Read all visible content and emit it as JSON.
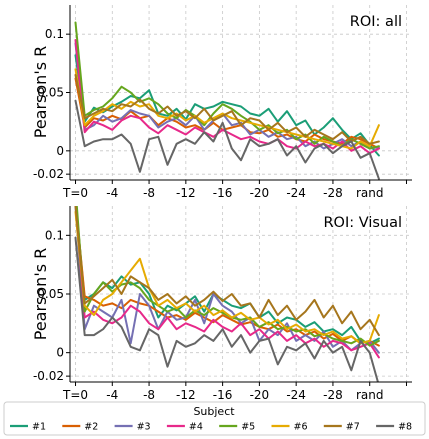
{
  "chart_data": [
    {
      "type": "line",
      "annotation": "ROI: all",
      "title": "",
      "xlabel": "",
      "ylabel": "Pearson's R",
      "ylim": [
        -0.025,
        0.125
      ],
      "xlim": [
        -0.6,
        36.6
      ],
      "x_ticks": [
        0,
        4,
        8,
        12,
        16,
        20,
        24,
        28,
        32,
        36
      ],
      "x_tick_labels": [
        "T=0",
        "-4",
        "-8",
        "-12",
        "-16",
        "-20",
        "-24",
        "-28",
        "rand",
        ""
      ],
      "y_ticks": [
        -0.02,
        0,
        0.05,
        0.1
      ],
      "y_tick_labels": [
        "-0.02",
        "0",
        "0.05",
        "0.1"
      ],
      "grid": true,
      "x": [
        0,
        1,
        2,
        3,
        4,
        5,
        6,
        7,
        8,
        9,
        10,
        11,
        12,
        13,
        14,
        15,
        16,
        17,
        18,
        19,
        20,
        21,
        22,
        23,
        24,
        25,
        26,
        27,
        28,
        29,
        30,
        31,
        32,
        33
      ],
      "series": [
        {
          "name": "#1",
          "color": "#1b9e77",
          "values": [
            0.082,
            0.025,
            0.037,
            0.033,
            0.038,
            0.042,
            0.047,
            0.045,
            0.052,
            0.032,
            0.03,
            0.036,
            0.027,
            0.04,
            0.036,
            0.038,
            0.042,
            0.04,
            0.038,
            0.032,
            0.03,
            0.036,
            0.025,
            0.034,
            0.022,
            0.026,
            0.014,
            0.02,
            0.028,
            0.018,
            0.01,
            0.015,
            0.005,
            -0.004
          ]
        },
        {
          "name": "#2",
          "color": "#d95f02",
          "values": [
            0.062,
            0.02,
            0.028,
            0.026,
            0.03,
            0.027,
            0.034,
            0.028,
            0.03,
            0.022,
            0.028,
            0.025,
            0.02,
            0.022,
            0.018,
            0.024,
            0.018,
            0.02,
            0.022,
            0.016,
            0.015,
            0.018,
            0.012,
            0.014,
            0.01,
            0.008,
            0.014,
            0.01,
            0.008,
            0.006,
            0.012,
            0.01,
            0.006,
            0.002
          ]
        },
        {
          "name": "#3",
          "color": "#7570b3",
          "values": [
            0.092,
            0.018,
            0.022,
            0.03,
            0.025,
            0.028,
            0.035,
            0.032,
            0.03,
            0.02,
            0.025,
            0.028,
            0.022,
            0.03,
            0.018,
            0.026,
            0.032,
            0.022,
            0.024,
            0.014,
            0.018,
            0.012,
            0.016,
            0.01,
            0.012,
            0.004,
            0.008,
            0.002,
            0.006,
            0.01,
            0.004,
            0.008,
            0.002,
            0.003
          ]
        },
        {
          "name": "#4",
          "color": "#e7298a",
          "values": [
            0.095,
            0.016,
            0.025,
            0.022,
            0.018,
            0.026,
            0.03,
            0.028,
            0.02,
            0.015,
            0.022,
            0.018,
            0.014,
            0.02,
            0.016,
            0.012,
            0.018,
            0.014,
            0.01,
            0.012,
            0.008,
            0.006,
            0.01,
            0.004,
            0.002,
            0.008,
            0.004,
            0.006,
            0.002,
            0.008,
            0.0,
            0.004,
            -0.002,
            0.002
          ]
        },
        {
          "name": "#5",
          "color": "#66a61e",
          "values": [
            0.11,
            0.03,
            0.035,
            0.038,
            0.045,
            0.055,
            0.05,
            0.042,
            0.045,
            0.04,
            0.032,
            0.028,
            0.035,
            0.03,
            0.022,
            0.032,
            0.04,
            0.036,
            0.03,
            0.025,
            0.018,
            0.022,
            0.015,
            0.018,
            0.01,
            0.014,
            0.006,
            0.012,
            0.008,
            0.004,
            0.01,
            0.006,
            0.002,
            0.004
          ]
        },
        {
          "name": "#6",
          "color": "#e6ab02",
          "values": [
            0.07,
            0.022,
            0.03,
            0.034,
            0.04,
            0.036,
            0.042,
            0.038,
            0.04,
            0.03,
            0.028,
            0.032,
            0.026,
            0.03,
            0.024,
            0.028,
            0.032,
            0.028,
            0.026,
            0.024,
            0.022,
            0.02,
            0.018,
            0.016,
            0.014,
            0.012,
            0.01,
            0.008,
            0.006,
            0.004,
            0.002,
            0.008,
            0.004,
            0.022
          ]
        },
        {
          "name": "#7",
          "color": "#a6761d",
          "values": [
            0.065,
            0.028,
            0.032,
            0.036,
            0.034,
            0.04,
            0.038,
            0.044,
            0.036,
            0.032,
            0.038,
            0.03,
            0.034,
            0.028,
            0.036,
            0.026,
            0.03,
            0.034,
            0.022,
            0.028,
            0.026,
            0.018,
            0.024,
            0.016,
            0.02,
            0.012,
            0.018,
            0.014,
            0.01,
            0.016,
            0.008,
            0.012,
            0.006,
            0.008
          ]
        },
        {
          "name": "#8",
          "color": "#666666",
          "values": [
            0.043,
            0.004,
            0.008,
            0.01,
            0.01,
            0.014,
            0.006,
            -0.018,
            0.01,
            0.012,
            -0.012,
            0.006,
            0.01,
            0.006,
            0.016,
            0.008,
            0.024,
            0.002,
            -0.008,
            0.01,
            0.004,
            0.006,
            0.01,
            -0.004,
            0.004,
            -0.01,
            0.002,
            0.006,
            -0.002,
            0.004,
            0.008,
            -0.006,
            -0.002,
            -0.024
          ]
        }
      ]
    },
    {
      "type": "line",
      "annotation": "ROI: Visual",
      "title": "",
      "xlabel": "",
      "ylabel": "Pearson's R",
      "ylim": [
        -0.025,
        0.125
      ],
      "xlim": [
        -0.6,
        36.6
      ],
      "x_ticks": [
        0,
        4,
        8,
        12,
        16,
        20,
        24,
        28,
        32,
        36
      ],
      "x_tick_labels": [
        "T=0",
        "-4",
        "-8",
        "-12",
        "-16",
        "-20",
        "-24",
        "-28",
        "rand",
        ""
      ],
      "y_ticks": [
        -0.02,
        0,
        0.05,
        0.1
      ],
      "y_tick_labels": [
        "-0.02",
        "0",
        "0.05",
        "0.1"
      ],
      "grid": true,
      "x": [
        0,
        1,
        2,
        3,
        4,
        5,
        6,
        7,
        8,
        9,
        10,
        11,
        12,
        13,
        14,
        15,
        16,
        17,
        18,
        19,
        20,
        21,
        22,
        23,
        24,
        25,
        26,
        27,
        28,
        29,
        30,
        31,
        32,
        33
      ],
      "series": [
        {
          "name": "#1",
          "color": "#1b9e77",
          "values": [
            0.13,
            0.045,
            0.05,
            0.06,
            0.055,
            0.065,
            0.058,
            0.06,
            0.05,
            0.03,
            0.04,
            0.036,
            0.042,
            0.048,
            0.035,
            0.05,
            0.045,
            0.04,
            0.038,
            0.042,
            0.03,
            0.035,
            0.025,
            0.03,
            0.028,
            0.022,
            0.026,
            0.018,
            0.02,
            0.015,
            0.022,
            0.01,
            0.008,
            0.012
          ]
        },
        {
          "name": "#2",
          "color": "#d95f02",
          "values": [
            0.128,
            0.048,
            0.045,
            0.04,
            0.042,
            0.038,
            0.045,
            0.042,
            0.04,
            0.035,
            0.03,
            0.032,
            0.028,
            0.034,
            0.03,
            0.026,
            0.032,
            0.028,
            0.024,
            0.026,
            0.022,
            0.02,
            0.024,
            0.018,
            0.02,
            0.015,
            0.018,
            0.012,
            0.016,
            0.01,
            0.014,
            0.008,
            0.01,
            0.006
          ]
        },
        {
          "name": "#3",
          "color": "#7570b3",
          "values": [
            0.125,
            0.02,
            0.04,
            0.035,
            0.03,
            0.045,
            0.008,
            0.05,
            0.04,
            0.02,
            0.035,
            0.028,
            0.03,
            0.045,
            0.025,
            0.05,
            0.04,
            0.035,
            0.025,
            0.03,
            0.01,
            0.02,
            0.015,
            0.025,
            0.01,
            0.015,
            0.01,
            0.018,
            0.005,
            0.01,
            0.002,
            0.008,
            0.01,
            0.0
          ]
        },
        {
          "name": "#4",
          "color": "#e7298a",
          "values": [
            0.128,
            0.03,
            0.035,
            0.028,
            0.025,
            0.03,
            0.04,
            0.035,
            0.025,
            0.02,
            0.03,
            0.02,
            0.025,
            0.022,
            0.018,
            0.028,
            0.022,
            0.018,
            0.025,
            0.015,
            0.02,
            0.012,
            0.018,
            0.01,
            0.015,
            0.008,
            0.012,
            0.005,
            0.01,
            0.008,
            0.002,
            0.005,
            0.008,
            -0.004
          ]
        },
        {
          "name": "#5",
          "color": "#66a61e",
          "values": [
            0.14,
            0.035,
            0.05,
            0.06,
            0.052,
            0.058,
            0.06,
            0.055,
            0.045,
            0.04,
            0.035,
            0.038,
            0.03,
            0.036,
            0.032,
            0.038,
            0.034,
            0.03,
            0.028,
            0.03,
            0.022,
            0.026,
            0.02,
            0.022,
            0.018,
            0.02,
            0.014,
            0.016,
            0.012,
            0.01,
            0.008,
            0.012,
            0.006,
            0.01
          ]
        },
        {
          "name": "#6",
          "color": "#e6ab02",
          "values": [
            0.12,
            0.04,
            0.032,
            0.045,
            0.05,
            0.06,
            0.07,
            0.08,
            0.055,
            0.04,
            0.045,
            0.038,
            0.042,
            0.035,
            0.04,
            0.032,
            0.036,
            0.03,
            0.034,
            0.028,
            0.03,
            0.024,
            0.028,
            0.02,
            0.024,
            0.018,
            0.02,
            0.015,
            0.018,
            0.012,
            0.014,
            0.008,
            0.01,
            0.032
          ]
        },
        {
          "name": "#7",
          "color": "#a6761d",
          "values": [
            0.125,
            0.042,
            0.048,
            0.055,
            0.062,
            0.05,
            0.065,
            0.06,
            0.055,
            0.045,
            0.05,
            0.042,
            0.048,
            0.04,
            0.045,
            0.052,
            0.044,
            0.05,
            0.04,
            0.042,
            0.03,
            0.045,
            0.032,
            0.04,
            0.028,
            0.035,
            0.045,
            0.03,
            0.04,
            0.025,
            0.035,
            0.02,
            0.028,
            0.015
          ]
        },
        {
          "name": "#8",
          "color": "#666666",
          "values": [
            0.098,
            0.015,
            0.015,
            0.02,
            0.03,
            0.022,
            0.005,
            0.002,
            0.02,
            0.015,
            -0.012,
            0.01,
            0.005,
            0.008,
            0.015,
            0.01,
            0.02,
            0.005,
            0.015,
            0.0,
            0.01,
            0.012,
            -0.01,
            0.005,
            0.002,
            0.008,
            -0.005,
            0.01,
            0.0,
            0.005,
            -0.015,
            0.01,
            0.0,
            -0.028
          ]
        }
      ]
    }
  ],
  "legend": {
    "title": "Subject",
    "placement": "bottom",
    "entries": [
      "#1",
      "#2",
      "#3",
      "#4",
      "#5",
      "#6",
      "#7",
      "#8"
    ],
    "colors": [
      "#1b9e77",
      "#d95f02",
      "#7570b3",
      "#e7298a",
      "#66a61e",
      "#e6ab02",
      "#a6761d",
      "#666666"
    ]
  }
}
